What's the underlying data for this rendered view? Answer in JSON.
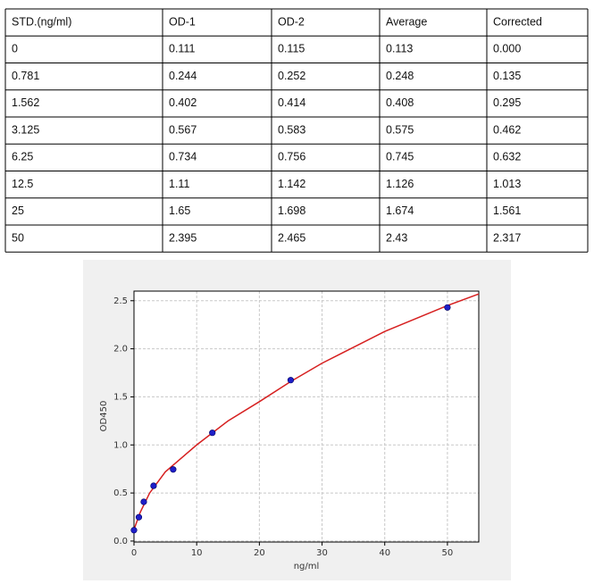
{
  "table": {
    "header": [
      "STD.(ng/ml)",
      "OD-1",
      "OD-2",
      "Average",
      "Corrected"
    ],
    "rows": [
      [
        "0",
        "0.111",
        "0.115",
        "0.113",
        "0.000"
      ],
      [
        "0.781",
        "0.244",
        "0.252",
        "0.248",
        "0.135"
      ],
      [
        "1.562",
        "0.402",
        "0.414",
        "0.408",
        "0.295"
      ],
      [
        "3.125",
        "0.567",
        "0.583",
        "0.575",
        "0.462"
      ],
      [
        "6.25",
        "0.734",
        "0.756",
        "0.745",
        "0.632"
      ],
      [
        "12.5",
        "1.11",
        "1.142",
        "1.126",
        "1.013"
      ],
      [
        "25",
        "1.65",
        "1.698",
        "1.674",
        "1.561"
      ],
      [
        "50",
        "2.395",
        "2.465",
        "2.43",
        "2.317"
      ]
    ]
  },
  "chart_data": {
    "type": "scatter",
    "x_label": "ng/ml",
    "y_label": "OD450",
    "x": [
      0,
      0.781,
      1.562,
      3.125,
      6.25,
      12.5,
      25,
      50
    ],
    "values": [
      0.113,
      0.248,
      0.408,
      0.575,
      0.745,
      1.126,
      1.674,
      2.43
    ],
    "color": "#1f1fc8",
    "fit": {
      "x": [
        0,
        1,
        2.5,
        5,
        10,
        15,
        20,
        25,
        30,
        40,
        50,
        55
      ],
      "values": [
        0.12,
        0.3,
        0.5,
        0.72,
        1.0,
        1.25,
        1.45,
        1.66,
        1.85,
        2.18,
        2.45,
        2.57
      ],
      "color": "#d62020"
    },
    "xlim": [
      0,
      55
    ],
    "ylim": [
      -0.01,
      2.6
    ],
    "xticks": [
      0,
      10,
      20,
      30,
      40,
      50
    ],
    "yticks": [
      {
        "value": 0,
        "label": "0.0"
      },
      0.5,
      {
        "value": 1,
        "label": "1.0"
      },
      1.5,
      {
        "value": 2,
        "label": "2.0"
      },
      2.5
    ],
    "grid": true
  }
}
